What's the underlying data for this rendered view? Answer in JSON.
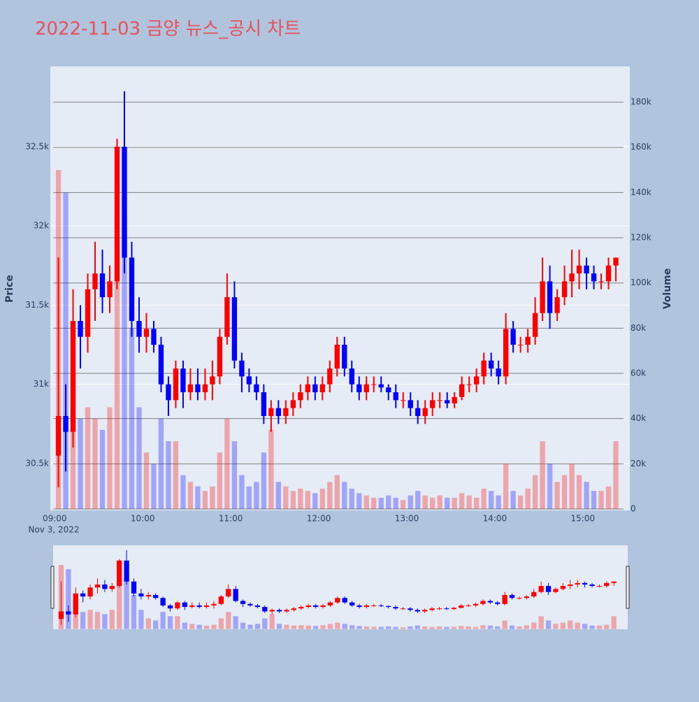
{
  "chart_data": {
    "type": "candlestick",
    "title": "2022-11-03 금양 뉴스_공시 차트",
    "x_date_label": "Nov 3, 2022",
    "y_label": "Price",
    "y2_label": "Volume",
    "increasing_color": "#ff0000",
    "decreasing_color": "#0000ff",
    "grid": true,
    "rangeslider": true,
    "x": [
      "2022-11-03 09:00",
      "2022-11-03 09:05",
      "2022-11-03 09:10",
      "2022-11-03 09:15",
      "2022-11-03 09:20",
      "2022-11-03 09:25",
      "2022-11-03 09:30",
      "2022-11-03 09:35",
      "2022-11-03 09:40",
      "2022-11-03 09:45",
      "2022-11-03 09:50",
      "2022-11-03 09:55",
      "2022-11-03 10:00",
      "2022-11-03 10:05",
      "2022-11-03 10:10",
      "2022-11-03 10:15",
      "2022-11-03 10:20",
      "2022-11-03 10:25",
      "2022-11-03 10:30",
      "2022-11-03 10:35",
      "2022-11-03 10:40",
      "2022-11-03 10:45",
      "2022-11-03 10:50",
      "2022-11-03 10:55",
      "2022-11-03 11:00",
      "2022-11-03 11:05",
      "2022-11-03 11:10",
      "2022-11-03 11:15",
      "2022-11-03 11:20",
      "2022-11-03 11:25",
      "2022-11-03 11:30",
      "2022-11-03 11:35",
      "2022-11-03 11:40",
      "2022-11-03 11:45",
      "2022-11-03 11:50",
      "2022-11-03 11:55",
      "2022-11-03 12:00",
      "2022-11-03 12:05",
      "2022-11-03 12:10",
      "2022-11-03 12:15",
      "2022-11-03 12:20",
      "2022-11-03 12:25",
      "2022-11-03 12:30",
      "2022-11-03 12:35",
      "2022-11-03 12:40",
      "2022-11-03 12:45",
      "2022-11-03 12:50",
      "2022-11-03 12:55",
      "2022-11-03 13:00",
      "2022-11-03 13:05",
      "2022-11-03 13:10",
      "2022-11-03 13:15",
      "2022-11-03 13:20",
      "2022-11-03 13:25",
      "2022-11-03 13:30",
      "2022-11-03 13:35",
      "2022-11-03 13:40",
      "2022-11-03 13:45",
      "2022-11-03 13:50",
      "2022-11-03 13:55",
      "2022-11-03 14:00",
      "2022-11-03 14:05",
      "2022-11-03 14:10",
      "2022-11-03 14:15",
      "2022-11-03 14:20",
      "2022-11-03 14:25",
      "2022-11-03 14:30",
      "2022-11-03 14:35",
      "2022-11-03 14:40",
      "2022-11-03 14:45",
      "2022-11-03 14:50",
      "2022-11-03 14:55",
      "2022-11-03 15:00",
      "2022-11-03 15:05",
      "2022-11-03 15:10",
      "2022-11-03 15:15",
      "2022-11-03 15:20"
    ],
    "open": [
      30550,
      30800,
      30700,
      31400,
      31300,
      31600,
      31700,
      31550,
      31650,
      32500,
      31800,
      31400,
      31300,
      31350,
      31250,
      31000,
      30900,
      31100,
      30950,
      31000,
      30950,
      31000,
      31050,
      31300,
      31550,
      31150,
      31050,
      31000,
      30950,
      30800,
      30850,
      30800,
      30850,
      30900,
      30950,
      31000,
      30950,
      31000,
      31100,
      31250,
      31100,
      31000,
      30950,
      31000,
      31000,
      30980,
      30950,
      30900,
      30900,
      30850,
      30800,
      30850,
      30900,
      30900,
      30880,
      30920,
      31000,
      31000,
      31050,
      31150,
      31100,
      31050,
      31350,
      31250,
      31250,
      31300,
      31450,
      31650,
      31450,
      31550,
      31650,
      31700,
      31750,
      31700,
      31650,
      31650,
      31750
    ],
    "high": [
      31800,
      31000,
      31600,
      31500,
      31700,
      31900,
      31850,
      31750,
      32550,
      32850,
      31900,
      31550,
      31450,
      31400,
      31300,
      31050,
      31150,
      31150,
      31100,
      31100,
      31100,
      31150,
      31350,
      31700,
      31650,
      31200,
      31100,
      31050,
      31000,
      30900,
      30900,
      30900,
      30950,
      31000,
      31050,
      31050,
      31050,
      31150,
      31300,
      31300,
      31150,
      31050,
      31050,
      31050,
      31050,
      31000,
      31000,
      30950,
      30950,
      30900,
      30900,
      30950,
      30950,
      30950,
      30950,
      31050,
      31050,
      31100,
      31200,
      31200,
      31150,
      31450,
      31400,
      31300,
      31350,
      31550,
      31800,
      31750,
      31600,
      31750,
      31850,
      31850,
      31800,
      31750,
      31700,
      31800,
      31800
    ],
    "low": [
      30350,
      30450,
      30600,
      31100,
      31200,
      31400,
      31450,
      31450,
      31600,
      31700,
      31300,
      31200,
      31200,
      31200,
      30950,
      30800,
      30850,
      30850,
      30900,
      30900,
      30900,
      30900,
      31000,
      31250,
      31100,
      30950,
      30950,
      30900,
      30750,
      30700,
      30750,
      30750,
      30800,
      30850,
      30900,
      30900,
      30900,
      30950,
      31050,
      31050,
      30950,
      30900,
      30900,
      30950,
      30950,
      30900,
      30850,
      30850,
      30800,
      30750,
      30750,
      30800,
      30850,
      30850,
      30850,
      30900,
      30950,
      30950,
      31000,
      31050,
      31000,
      31000,
      31200,
      31200,
      31200,
      31250,
      31400,
      31350,
      31400,
      31500,
      31550,
      31600,
      31600,
      31600,
      31600,
      31600,
      31650
    ],
    "close": [
      30800,
      30700,
      31400,
      31300,
      31600,
      31700,
      31550,
      31650,
      32500,
      31800,
      31400,
      31300,
      31350,
      31250,
      31000,
      30900,
      31100,
      30950,
      31000,
      30950,
      31000,
      31050,
      31300,
      31550,
      31150,
      31050,
      31000,
      30950,
      30800,
      30850,
      30800,
      30850,
      30900,
      30950,
      31000,
      30950,
      31000,
      31100,
      31250,
      31100,
      31000,
      30950,
      31000,
      31000,
      30980,
      30950,
      30900,
      30900,
      30850,
      30800,
      30850,
      30900,
      30900,
      30880,
      30920,
      31000,
      31000,
      31050,
      31150,
      31100,
      31050,
      31350,
      31250,
      31250,
      31300,
      31450,
      31650,
      31450,
      31550,
      31650,
      31700,
      31750,
      31700,
      31650,
      31650,
      31750,
      31800
    ],
    "volume": [
      150000,
      140000,
      60000,
      40000,
      45000,
      40000,
      35000,
      45000,
      120000,
      130000,
      80000,
      45000,
      25000,
      20000,
      40000,
      30000,
      30000,
      15000,
      12000,
      10000,
      8000,
      10000,
      25000,
      40000,
      30000,
      15000,
      10000,
      12000,
      25000,
      35000,
      12000,
      10000,
      8000,
      9000,
      8000,
      7000,
      9000,
      12000,
      15000,
      12000,
      9000,
      7000,
      6000,
      5000,
      5000,
      6000,
      5000,
      4000,
      6000,
      8000,
      6000,
      5000,
      6000,
      5000,
      5000,
      7000,
      6000,
      5000,
      9000,
      8000,
      6000,
      20000,
      8000,
      6000,
      9000,
      15000,
      30000,
      20000,
      12000,
      15000,
      20000,
      15000,
      12000,
      8000,
      8000,
      10000,
      30000
    ],
    "xlim": [
      "2022-11-03 08:57",
      "2022-11-03 15:32"
    ],
    "xticks": [
      {
        "value": "2022-11-03 09:00",
        "label": "09:00"
      },
      {
        "value": "2022-11-03 10:00",
        "label": "10:00"
      },
      {
        "value": "2022-11-03 11:00",
        "label": "11:00"
      },
      {
        "value": "2022-11-03 12:00",
        "label": "12:00"
      },
      {
        "value": "2022-11-03 13:00",
        "label": "13:00"
      },
      {
        "value": "2022-11-03 14:00",
        "label": "14:00"
      },
      {
        "value": "2022-11-03 15:00",
        "label": "15:00"
      }
    ],
    "ylim": [
      30204,
      33007
    ],
    "yticks": [
      {
        "value": 30500,
        "label": "30.5k"
      },
      {
        "value": 31000,
        "label": "31k"
      },
      {
        "value": 31500,
        "label": "31.5k"
      },
      {
        "value": 32000,
        "label": "32k"
      },
      {
        "value": 32500,
        "label": "32.5k"
      }
    ],
    "y2lim": [
      -620,
      195800
    ],
    "y2ticks": [
      0,
      {
        "value": 20000,
        "label": "20k"
      },
      {
        "value": 40000,
        "label": "40k"
      },
      {
        "value": 60000,
        "label": "60k"
      },
      {
        "value": 80000,
        "label": "80k"
      },
      {
        "value": 100000,
        "label": "100k"
      },
      {
        "value": 120000,
        "label": "120k"
      },
      {
        "value": 140000,
        "label": "140k"
      },
      {
        "value": 160000,
        "label": "160k"
      },
      {
        "value": 180000,
        "label": "180k"
      }
    ]
  }
}
